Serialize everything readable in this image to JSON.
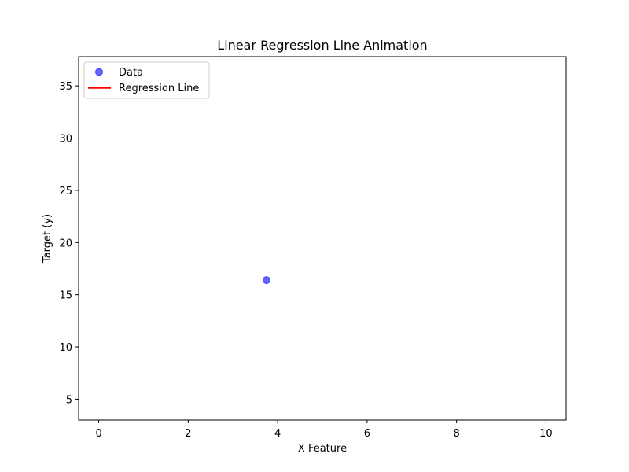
{
  "chart_data": {
    "type": "scatter",
    "title": "Linear Regression Line Animation",
    "xlabel": "X Feature",
    "ylabel": "Target (y)",
    "xlim": [
      -0.45,
      10.45
    ],
    "ylim": [
      3.0,
      37.8
    ],
    "xticks": [
      0,
      2,
      4,
      6,
      8,
      10
    ],
    "yticks": [
      5,
      10,
      15,
      20,
      25,
      30,
      35
    ],
    "grid": false,
    "legend_placement": "upper-left",
    "series": [
      {
        "name": "Data",
        "kind": "scatter",
        "color": "#0000ff",
        "alpha": 0.6,
        "points": [
          {
            "x": 3.75,
            "y": 16.4
          }
        ]
      },
      {
        "name": "Regression Line",
        "kind": "line",
        "color": "#ff0000",
        "points": []
      }
    ]
  }
}
